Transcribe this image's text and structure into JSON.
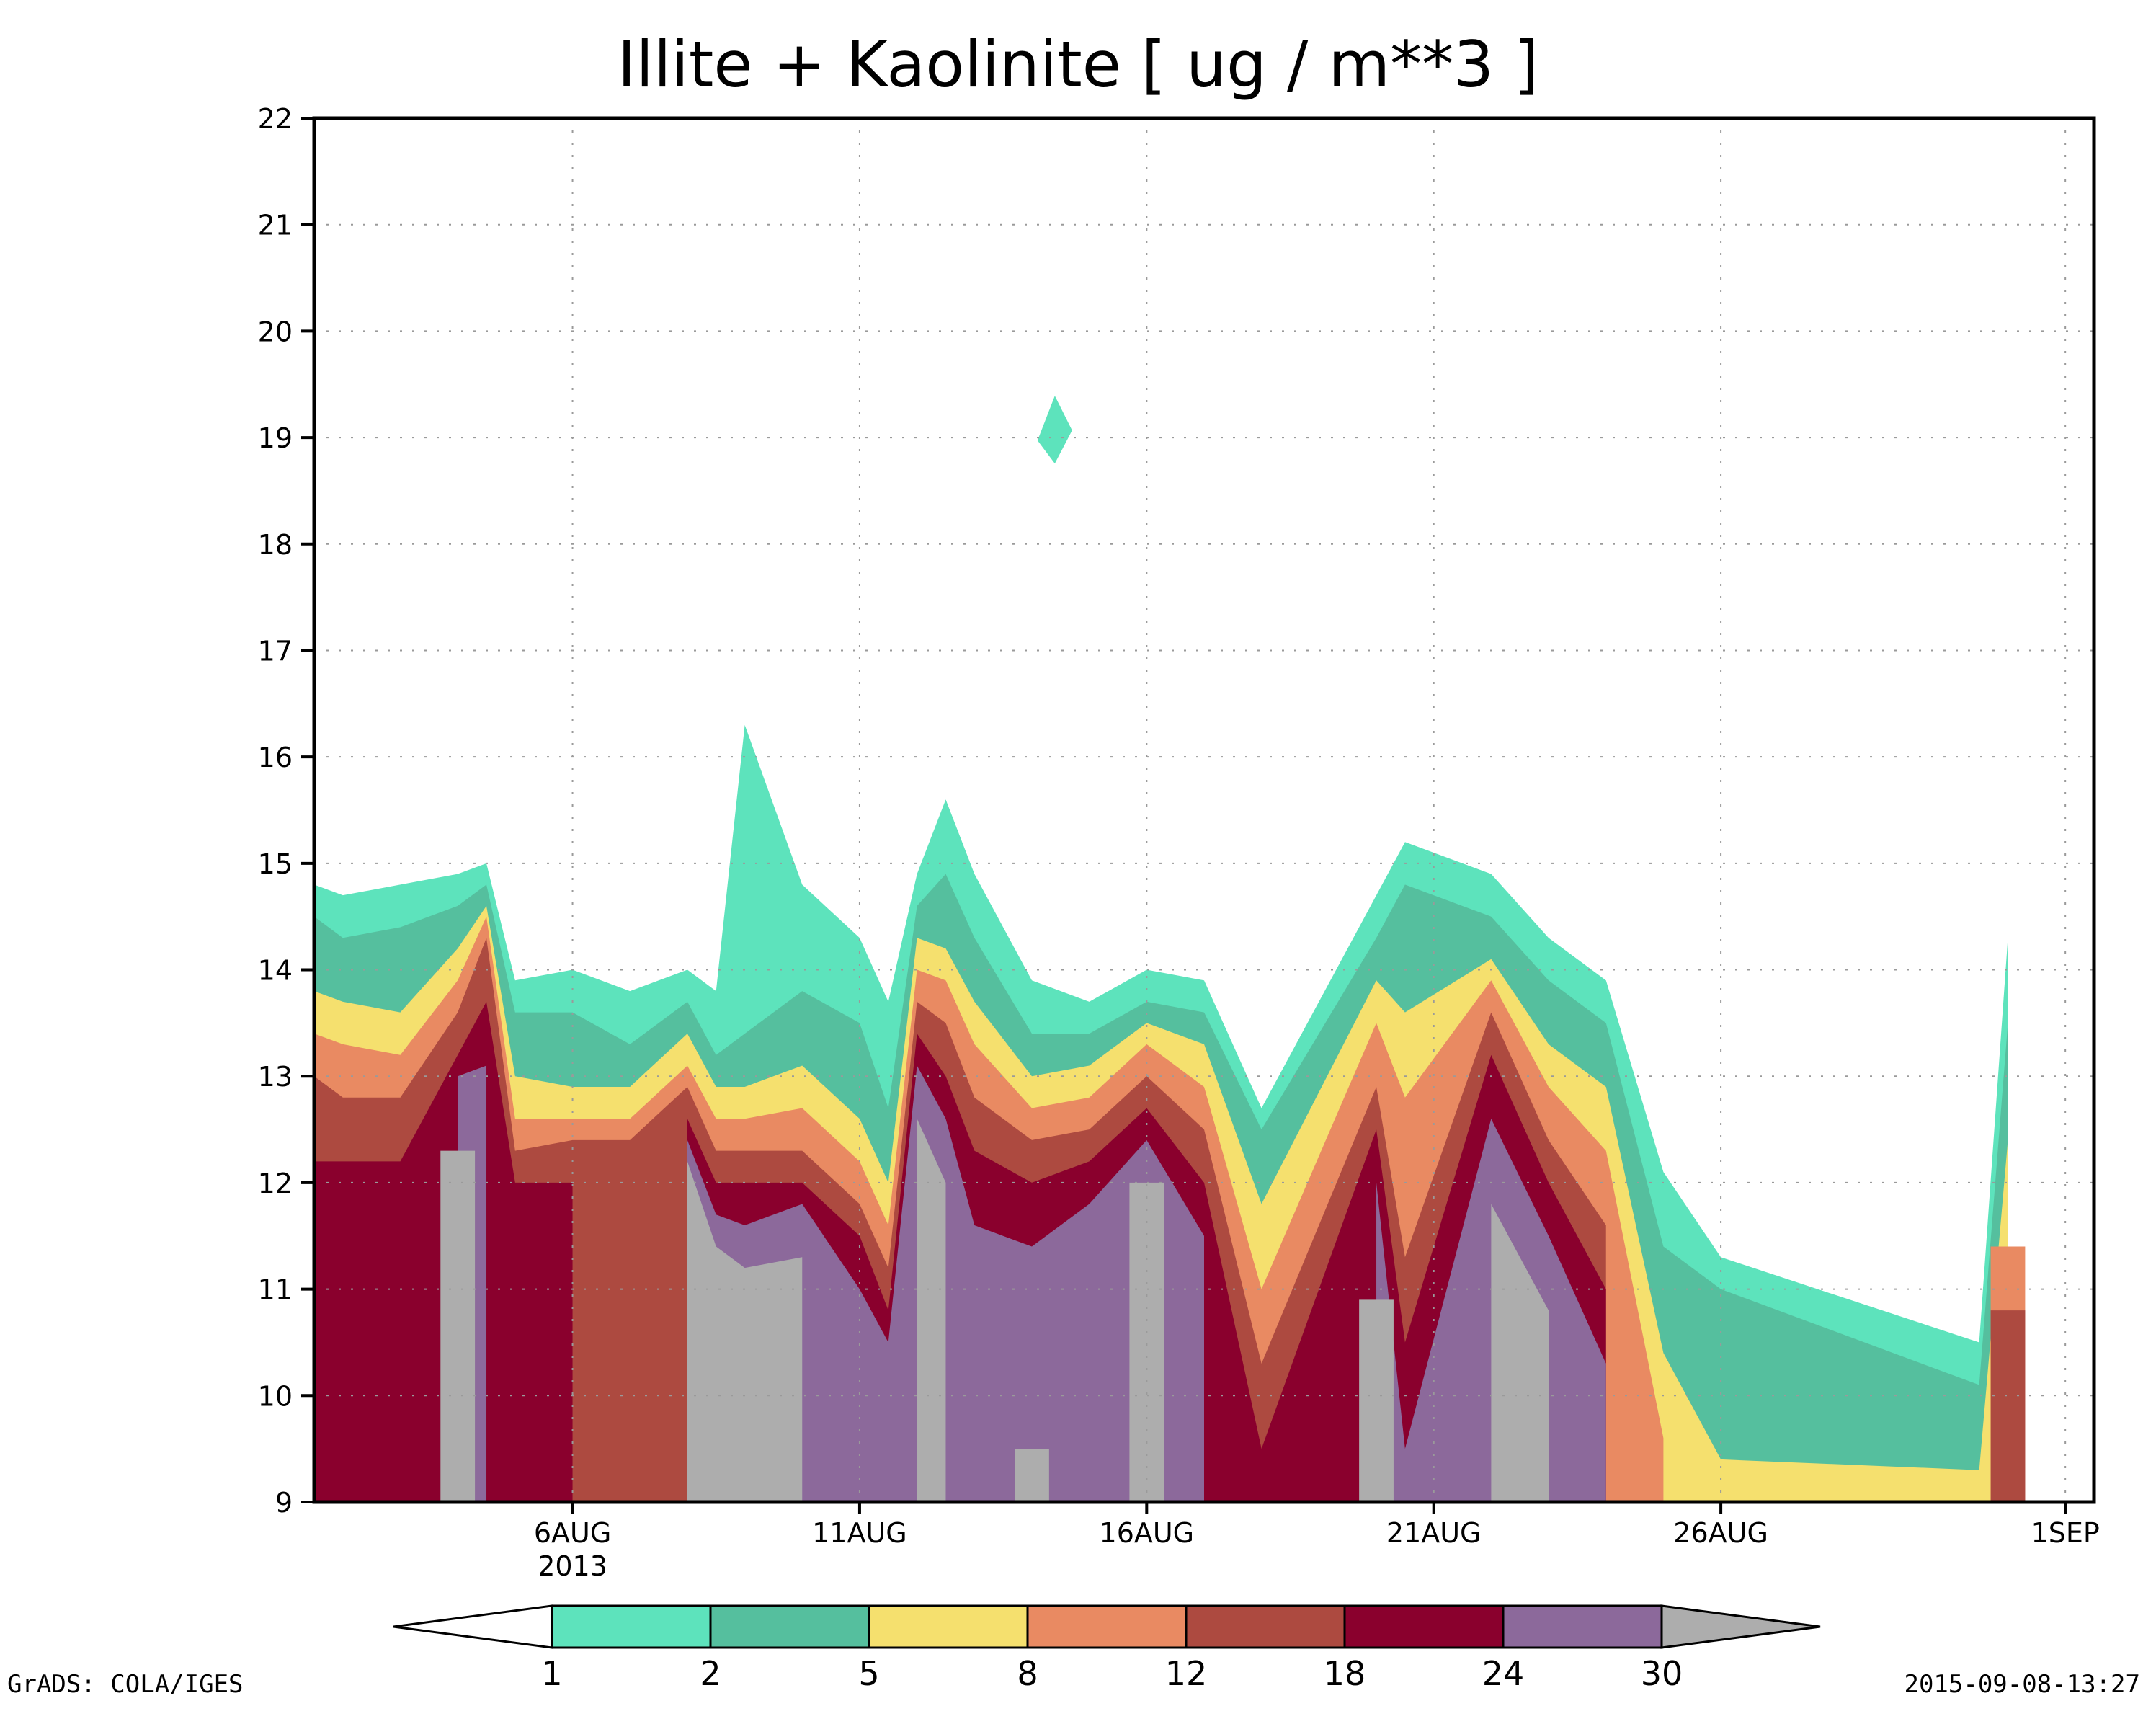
{
  "chart_data": {
    "type": "heatmap",
    "subtype": "filled-contour time-height",
    "title": "Illite + Kaolinite [ ug / m**3 ]",
    "xlabel": "",
    "ylabel": "",
    "ylim": [
      9,
      22
    ],
    "yticks": [
      "9",
      "10",
      "11",
      "12",
      "13",
      "14",
      "15",
      "16",
      "17",
      "18",
      "19",
      "20",
      "21",
      "22"
    ],
    "xlim": [
      "2013-08-01T12",
      "2013-09-01T12"
    ],
    "xticks": [
      {
        "date": "2013-08-06",
        "label": "6AUG",
        "sublabel": "2013"
      },
      {
        "date": "2013-08-11",
        "label": "11AUG"
      },
      {
        "date": "2013-08-16",
        "label": "16AUG"
      },
      {
        "date": "2013-08-21",
        "label": "21AUG"
      },
      {
        "date": "2013-08-26",
        "label": "26AUG"
      },
      {
        "date": "2013-09-01",
        "label": "1SEP"
      }
    ],
    "grid": true,
    "levels": [
      "1",
      "2",
      "5",
      "8",
      "12",
      "18",
      "24",
      "30"
    ],
    "colors": {
      "lt1": "#ffffff",
      "1-2": "#5de3bc",
      "2-5": "#55bf9e",
      "5-8": "#f5e06e",
      "8-12": "#e98a62",
      "12-18": "#ad4a40",
      "18-24": "#8a002d",
      "24-30": "#8c699b",
      "gt30": "#adadad"
    },
    "contour_tops": {
      "columns": [
        "day",
        "1",
        "2",
        "5",
        "8",
        "12",
        "18",
        "24",
        "30"
      ],
      "rows": [
        [
          1.5,
          14.8,
          14.5,
          13.8,
          13.4,
          13.0,
          12.2,
          9.0,
          0
        ],
        [
          2.0,
          14.7,
          14.3,
          13.7,
          13.3,
          12.8,
          12.2,
          9.0,
          0
        ],
        [
          3.0,
          14.8,
          14.4,
          13.6,
          13.2,
          12.8,
          12.2,
          9.0,
          0
        ],
        [
          4.0,
          14.9,
          14.6,
          14.2,
          13.9,
          13.6,
          13.2,
          13.0,
          12.3
        ],
        [
          4.5,
          15.0,
          14.8,
          14.6,
          14.5,
          14.3,
          13.7,
          13.1,
          9.0
        ],
        [
          5.0,
          13.9,
          13.6,
          13.0,
          12.6,
          12.3,
          12.0,
          9.0,
          0
        ],
        [
          6.0,
          14.0,
          13.6,
          12.9,
          12.6,
          12.4,
          12.0,
          9.0,
          0
        ],
        [
          7.0,
          13.8,
          13.3,
          12.9,
          12.6,
          12.4,
          9.0,
          0,
          0
        ],
        [
          8.0,
          14.0,
          13.7,
          13.4,
          13.1,
          12.9,
          12.6,
          12.4,
          12.2
        ],
        [
          8.5,
          13.8,
          13.2,
          12.9,
          12.6,
          12.3,
          12.0,
          11.7,
          11.4
        ],
        [
          9.0,
          16.3,
          13.4,
          12.9,
          12.6,
          12.3,
          12.0,
          11.6,
          11.2
        ],
        [
          10.0,
          14.8,
          13.8,
          13.1,
          12.7,
          12.3,
          12.0,
          11.8,
          11.3
        ],
        [
          11.0,
          14.3,
          13.5,
          12.6,
          12.2,
          11.8,
          11.5,
          11.0,
          9.0
        ],
        [
          11.5,
          13.7,
          12.7,
          12.0,
          11.6,
          11.2,
          10.8,
          10.5,
          9.0
        ],
        [
          12.0,
          14.9,
          14.6,
          14.3,
          14.0,
          13.7,
          13.4,
          13.1,
          12.6
        ],
        [
          12.5,
          15.6,
          14.9,
          14.2,
          13.9,
          13.5,
          13.0,
          12.6,
          12.0
        ],
        [
          13.0,
          14.9,
          14.3,
          13.7,
          13.3,
          12.8,
          12.3,
          11.6,
          9.0
        ],
        [
          14.0,
          13.9,
          13.4,
          13.0,
          12.7,
          12.4,
          12.0,
          11.4,
          9.5
        ],
        [
          15.0,
          13.7,
          13.4,
          13.1,
          12.8,
          12.5,
          12.2,
          11.8,
          9.0
        ],
        [
          16.0,
          14.0,
          13.7,
          13.5,
          13.3,
          13.0,
          12.7,
          12.4,
          12.0
        ],
        [
          17.0,
          13.9,
          13.6,
          13.3,
          12.9,
          12.5,
          12.0,
          11.5,
          9.0
        ],
        [
          18.0,
          12.7,
          12.5,
          11.8,
          11.0,
          10.3,
          9.5,
          0,
          0
        ],
        [
          20.0,
          14.7,
          14.3,
          13.9,
          13.5,
          12.9,
          12.5,
          12.0,
          10.9
        ],
        [
          20.5,
          15.2,
          14.8,
          13.6,
          12.8,
          11.3,
          10.5,
          9.5,
          0
        ],
        [
          22.0,
          14.9,
          14.5,
          14.1,
          13.9,
          13.6,
          13.2,
          12.6,
          11.8
        ],
        [
          23.0,
          14.3,
          13.9,
          13.3,
          12.9,
          12.4,
          12.0,
          11.5,
          10.8
        ],
        [
          24.0,
          13.9,
          13.5,
          12.9,
          12.3,
          11.6,
          11.0,
          10.3,
          9.0
        ],
        [
          25.0,
          12.1,
          11.4,
          10.4,
          9.6,
          9.0,
          0,
          0,
          0
        ],
        [
          26.0,
          11.3,
          11.0,
          9.4,
          0,
          0,
          0,
          0,
          0
        ],
        [
          30.5,
          10.5,
          10.1,
          9.3,
          0,
          0,
          0,
          0,
          0
        ],
        [
          31.0,
          14.3,
          13.5,
          12.4,
          11.4,
          10.8,
          0,
          0,
          0
        ]
      ]
    },
    "isolated_features": [
      {
        "level": "1-2",
        "day": 14.4,
        "height": 19.0
      }
    ]
  },
  "footer_left": "GrADS: COLA/IGES",
  "footer_right": "2015-09-08-13:27"
}
